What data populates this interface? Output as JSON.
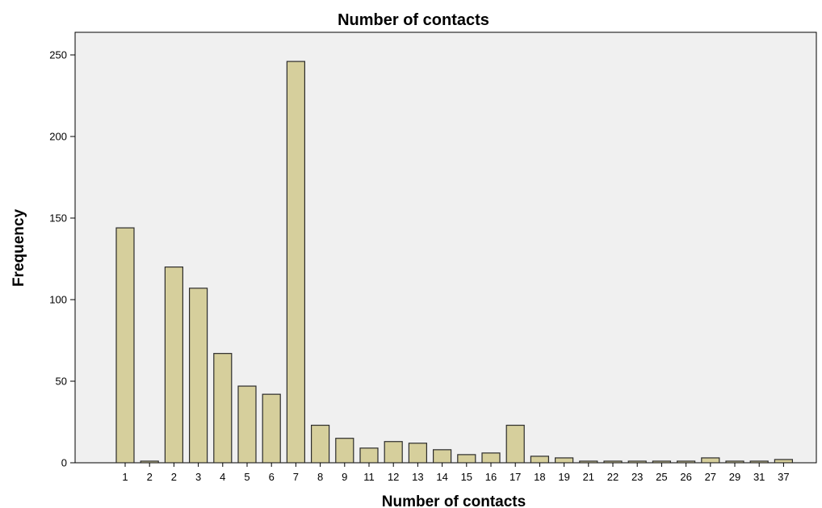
{
  "chart_data": {
    "type": "bar",
    "title": "Number of contacts",
    "xlabel": "Number of contacts",
    "ylabel": "Frequency",
    "categories": [
      "1",
      "2",
      "2",
      "3",
      "4",
      "5",
      "6",
      "7",
      "8",
      "9",
      "11",
      "12",
      "13",
      "14",
      "15",
      "16",
      "17",
      "18",
      "19",
      "21",
      "22",
      "23",
      "25",
      "26",
      "27",
      "29",
      "31",
      "37"
    ],
    "values": [
      144,
      1,
      120,
      107,
      67,
      47,
      42,
      246,
      23,
      15,
      9,
      13,
      12,
      8,
      5,
      6,
      23,
      4,
      3,
      1,
      1,
      1,
      1,
      1,
      3,
      1,
      1,
      2
    ],
    "ylim": [
      0,
      260
    ],
    "yticks": [
      0,
      50,
      100,
      150,
      200,
      250
    ],
    "grid": false,
    "colors": {
      "bar_fill": "#d6cf9c",
      "bar_stroke": "#2b2b2b",
      "plot_background": "#f0f0f0",
      "page_background": "#ffffff"
    }
  }
}
